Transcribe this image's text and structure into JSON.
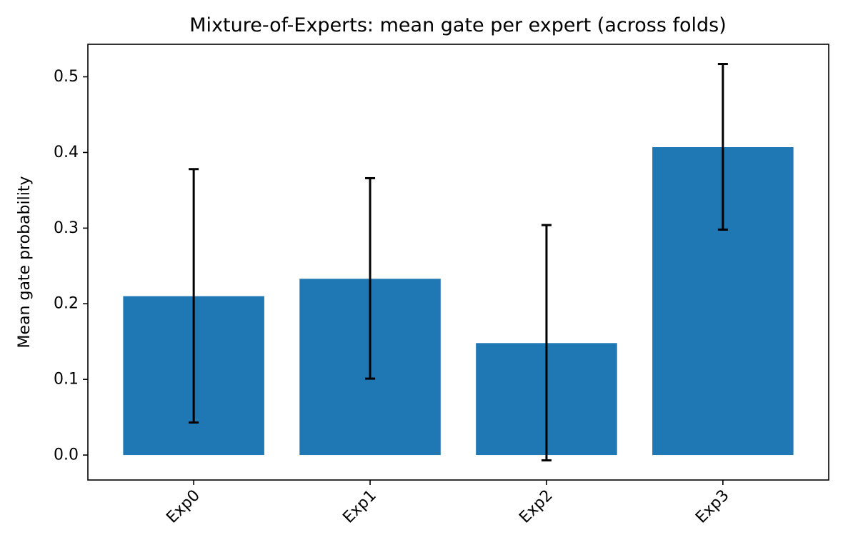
{
  "chart_data": {
    "type": "bar",
    "title": "Mixture-of-Experts: mean gate per expert (across folds)",
    "xlabel": "",
    "ylabel": "Mean gate probability",
    "categories": [
      "Exp0",
      "Exp1",
      "Exp2",
      "Exp3"
    ],
    "values": [
      0.21,
      0.233,
      0.148,
      0.407
    ],
    "error_low": [
      0.043,
      0.101,
      -0.007,
      0.298
    ],
    "error_high": [
      0.378,
      0.366,
      0.304,
      0.517
    ],
    "ylim": [
      -0.033,
      0.543
    ],
    "yticks": [
      0.0,
      0.1,
      0.2,
      0.3,
      0.4,
      0.5
    ],
    "ytick_labels": [
      "0.0",
      "0.1",
      "0.2",
      "0.3",
      "0.4",
      "0.5"
    ],
    "grid": false,
    "legend": null,
    "bar_color": "#1f77b4",
    "errorbar_color": "#000000",
    "xtick_rotation": "45 degrees, right-aligned"
  }
}
